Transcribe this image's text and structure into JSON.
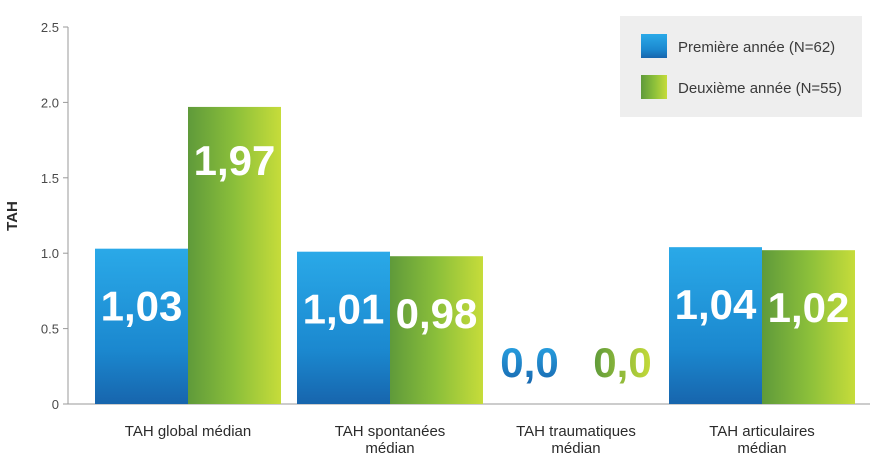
{
  "chart_data": {
    "type": "bar",
    "ylabel": "TAH",
    "xlabel": "",
    "ylim": [
      0,
      2.5
    ],
    "yticks": [
      "0",
      "0.5",
      "1.0",
      "1.5",
      "2.0",
      "2.5"
    ],
    "categories": [
      [
        "TAH global médian"
      ],
      [
        "TAH spontanées",
        "médian"
      ],
      [
        "TAH traumatiques",
        "médian"
      ],
      [
        "TAH articulaires",
        "médian"
      ]
    ],
    "series": [
      {
        "name": "Première année (N=62)",
        "values": [
          1.03,
          1.01,
          0.0,
          1.04
        ],
        "labels": [
          "1,03",
          "1,01",
          "0,0",
          "1,04"
        ],
        "color": "#1f8fd6"
      },
      {
        "name": "Deuxième année (N=55)",
        "values": [
          1.97,
          0.98,
          0.0,
          1.02
        ],
        "labels": [
          "1,97",
          "0,98",
          "0,0",
          "1,02"
        ],
        "color": "#8fbf3a"
      }
    ],
    "legend_position": "top-right",
    "grid": false
  }
}
